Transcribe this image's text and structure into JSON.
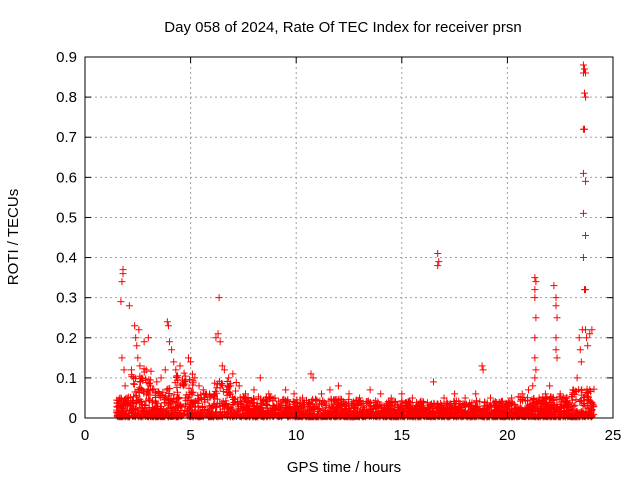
{
  "chart_data": {
    "type": "scatter",
    "title": "Day 058 of 2024, Rate Of TEC Index for receiver prsn",
    "xlabel": "GPS time / hours",
    "ylabel": "ROTI / TECUs",
    "xlim": [
      0,
      25
    ],
    "ylim": [
      0,
      0.9
    ],
    "xticks": [
      0,
      5,
      10,
      15,
      20,
      25
    ],
    "yticks": [
      0,
      0.1,
      0.2,
      0.3,
      0.4,
      0.5,
      0.6,
      0.7,
      0.8,
      0.9
    ],
    "grid": true,
    "marker": "plus",
    "color": "#ff0000",
    "series": [
      {
        "points": [
          [
            1.6,
            0.03
          ],
          [
            1.7,
            0.05
          ],
          [
            1.75,
            0.15
          ],
          [
            1.8,
            0.37
          ],
          [
            1.8,
            0.36
          ],
          [
            1.75,
            0.34
          ],
          [
            1.7,
            0.29
          ],
          [
            1.85,
            0.12
          ],
          [
            1.9,
            0.08
          ],
          [
            2.0,
            0.05
          ],
          [
            2.1,
            0.28
          ],
          [
            2.2,
            0.12
          ],
          [
            2.3,
            0.1
          ],
          [
            2.35,
            0.23
          ],
          [
            2.4,
            0.2
          ],
          [
            2.45,
            0.18
          ],
          [
            2.5,
            0.15
          ],
          [
            2.55,
            0.22
          ],
          [
            2.6,
            0.13
          ],
          [
            2.7,
            0.1
          ],
          [
            2.8,
            0.19
          ],
          [
            2.9,
            0.12
          ],
          [
            3.0,
            0.2
          ],
          [
            3.1,
            0.08
          ],
          [
            3.2,
            0.07
          ],
          [
            3.4,
            0.09
          ],
          [
            3.6,
            0.1
          ],
          [
            3.8,
            0.12
          ],
          [
            3.9,
            0.24
          ],
          [
            3.95,
            0.23
          ],
          [
            4.0,
            0.19
          ],
          [
            4.1,
            0.17
          ],
          [
            4.2,
            0.14
          ],
          [
            4.3,
            0.12
          ],
          [
            4.4,
            0.1
          ],
          [
            4.5,
            0.13
          ],
          [
            4.7,
            0.09
          ],
          [
            4.9,
            0.15
          ],
          [
            5.0,
            0.14
          ],
          [
            5.2,
            0.1
          ],
          [
            5.4,
            0.08
          ],
          [
            5.6,
            0.07
          ],
          [
            5.9,
            0.06
          ],
          [
            6.2,
            0.2
          ],
          [
            6.3,
            0.21
          ],
          [
            6.35,
            0.3
          ],
          [
            6.4,
            0.19
          ],
          [
            6.5,
            0.13
          ],
          [
            6.6,
            0.12
          ],
          [
            6.8,
            0.1
          ],
          [
            7.0,
            0.11
          ],
          [
            7.3,
            0.08
          ],
          [
            7.6,
            0.06
          ],
          [
            8.0,
            0.07
          ],
          [
            8.3,
            0.1
          ],
          [
            8.7,
            0.06
          ],
          [
            9.0,
            0.05
          ],
          [
            9.5,
            0.07
          ],
          [
            9.9,
            0.06
          ],
          [
            10.3,
            0.05
          ],
          [
            10.7,
            0.11
          ],
          [
            10.8,
            0.1
          ],
          [
            11.2,
            0.06
          ],
          [
            11.6,
            0.07
          ],
          [
            12.0,
            0.08
          ],
          [
            12.5,
            0.06
          ],
          [
            13.0,
            0.05
          ],
          [
            13.5,
            0.07
          ],
          [
            14.0,
            0.06
          ],
          [
            14.5,
            0.05
          ],
          [
            15.0,
            0.06
          ],
          [
            15.5,
            0.05
          ],
          [
            16.0,
            0.04
          ],
          [
            16.5,
            0.09
          ],
          [
            16.7,
            0.41
          ],
          [
            16.75,
            0.39
          ],
          [
            16.7,
            0.38
          ],
          [
            17.0,
            0.05
          ],
          [
            17.5,
            0.06
          ],
          [
            18.0,
            0.05
          ],
          [
            18.5,
            0.06
          ],
          [
            18.8,
            0.13
          ],
          [
            18.85,
            0.12
          ],
          [
            19.2,
            0.05
          ],
          [
            19.7,
            0.04
          ],
          [
            20.2,
            0.05
          ],
          [
            20.7,
            0.06
          ],
          [
            21.0,
            0.07
          ],
          [
            21.2,
            0.08
          ],
          [
            21.3,
            0.35
          ],
          [
            21.35,
            0.34
          ],
          [
            21.3,
            0.32
          ],
          [
            21.3,
            0.3
          ],
          [
            21.35,
            0.25
          ],
          [
            21.3,
            0.2
          ],
          [
            21.3,
            0.15
          ],
          [
            21.35,
            0.12
          ],
          [
            21.3,
            0.1
          ],
          [
            21.5,
            0.05
          ],
          [
            21.8,
            0.06
          ],
          [
            22.0,
            0.08
          ],
          [
            22.2,
            0.33
          ],
          [
            22.3,
            0.3
          ],
          [
            22.3,
            0.28
          ],
          [
            22.35,
            0.25
          ],
          [
            22.3,
            0.2
          ],
          [
            22.3,
            0.17
          ],
          [
            22.35,
            0.15
          ],
          [
            22.5,
            0.06
          ],
          [
            22.8,
            0.05
          ],
          [
            23.1,
            0.07
          ],
          [
            23.3,
            0.1
          ],
          [
            23.4,
            0.2
          ],
          [
            23.45,
            0.17
          ],
          [
            23.5,
            0.14
          ],
          [
            23.55,
            0.22
          ],
          [
            23.6,
            0.88
          ],
          [
            23.65,
            0.87
          ],
          [
            23.6,
            0.86
          ],
          [
            23.7,
            0.86
          ],
          [
            23.65,
            0.81
          ],
          [
            23.7,
            0.8
          ],
          [
            23.6,
            0.72
          ],
          [
            23.65,
            0.72
          ],
          [
            23.6,
            0.61
          ],
          [
            23.7,
            0.59
          ],
          [
            23.6,
            0.51
          ],
          [
            23.7,
            0.455
          ],
          [
            23.6,
            0.4
          ],
          [
            23.65,
            0.32
          ],
          [
            23.7,
            0.32
          ],
          [
            23.7,
            0.22
          ],
          [
            23.75,
            0.2
          ],
          [
            23.8,
            0.18
          ],
          [
            23.9,
            0.21
          ],
          [
            24.0,
            0.22
          ],
          [
            23.9,
            0.07
          ],
          [
            24.0,
            0.02
          ]
        ]
      }
    ]
  }
}
